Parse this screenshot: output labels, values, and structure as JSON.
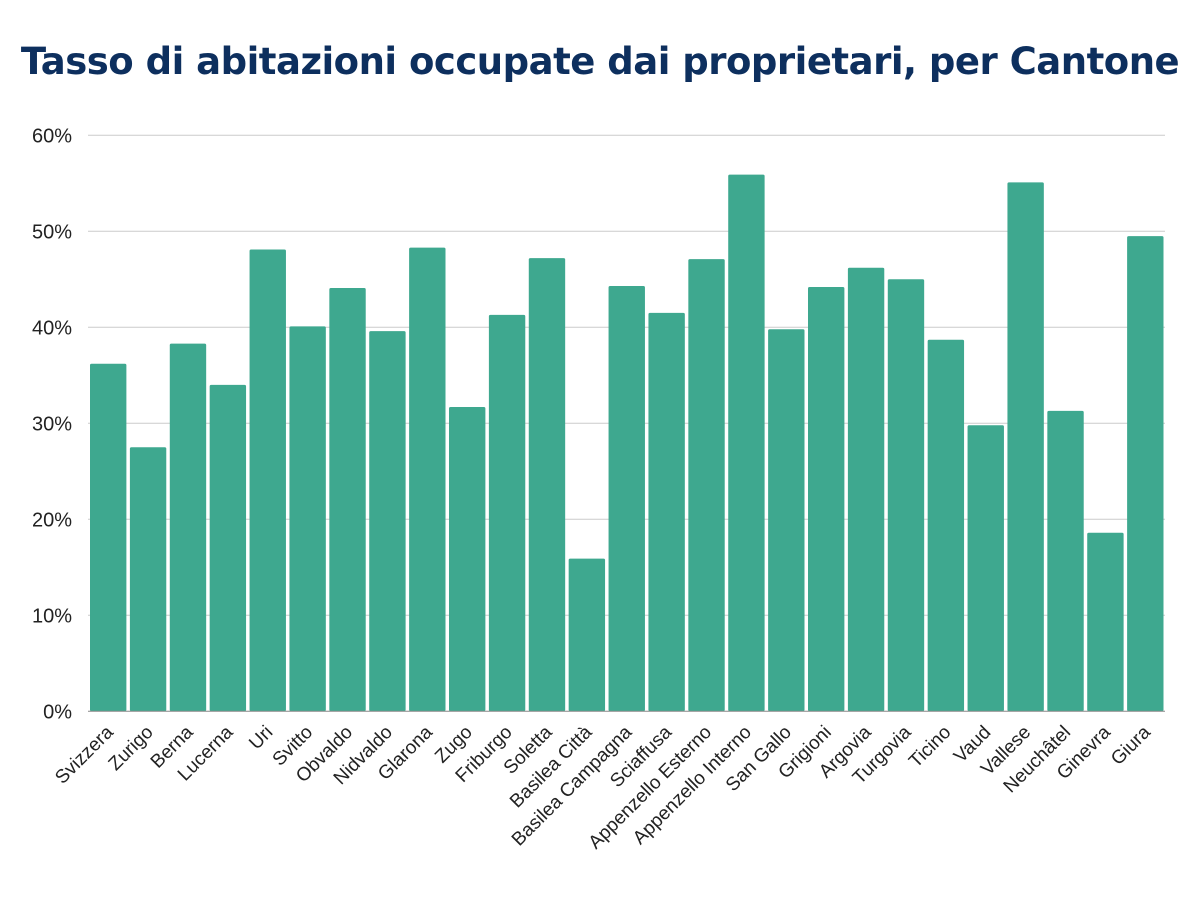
{
  "chart_data": {
    "type": "bar",
    "title": "Tasso di abitazioni occupate dai proprietari, per Cantone",
    "xlabel": "",
    "ylabel": "",
    "ylim": [
      0,
      60
    ],
    "yticks": [
      "0%",
      "10%",
      "20%",
      "30%",
      "40%",
      "50%",
      "60%"
    ],
    "grid": true,
    "bar_color": "#3ea88f",
    "title_color": "#0d2f5e",
    "categories": [
      "Svizzera",
      "Zurigo",
      "Berna",
      "Lucerna",
      "Uri",
      "Svitto",
      "Obvaldo",
      "Nidvaldo",
      "Glarona",
      "Zugo",
      "Friburgo",
      "Soletta",
      "Basilea Città",
      "Basilea Campagna",
      "Sciaffusa",
      "Appenzello Esterno",
      "Appenzello Interno",
      "San Gallo",
      "Grigioni",
      "Argovia",
      "Turgovia",
      "Ticino",
      "Vaud",
      "Vallese",
      "Neuchâtel",
      "Ginevra",
      "Giura"
    ],
    "values": [
      36.2,
      27.5,
      38.3,
      34.0,
      48.1,
      40.1,
      44.1,
      39.6,
      48.3,
      31.7,
      41.3,
      47.2,
      15.9,
      44.3,
      41.5,
      47.1,
      55.9,
      39.8,
      44.2,
      46.2,
      45.0,
      38.7,
      29.8,
      55.1,
      31.3,
      18.6,
      49.5
    ]
  }
}
